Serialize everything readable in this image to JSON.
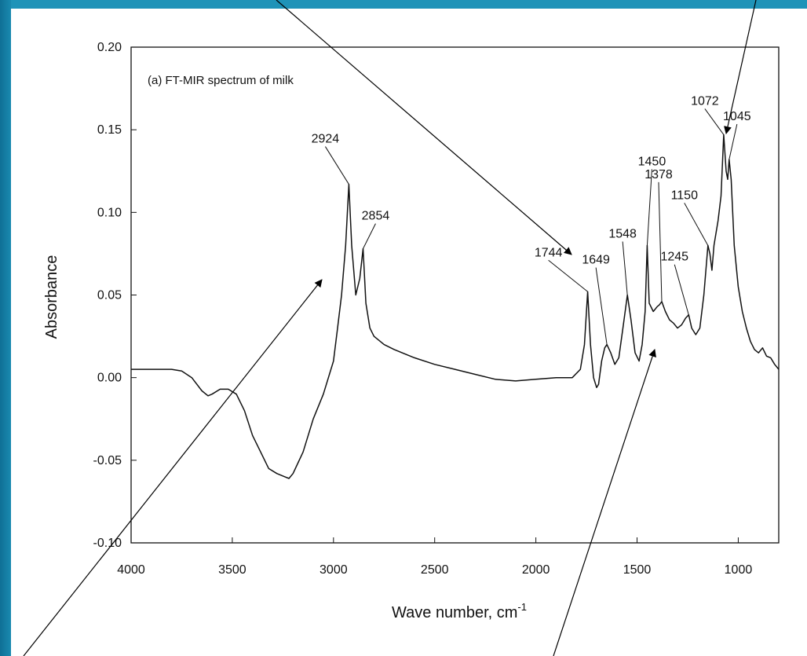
{
  "chart_data": {
    "type": "line",
    "title": "(a) FT-MIR spectrum of milk",
    "xlabel": "Wave number, cm",
    "xlabel_sup": "-1",
    "ylabel": "Absorbance",
    "xlim": [
      4000,
      800
    ],
    "ylim": [
      -0.1,
      0.2
    ],
    "x_reversed": true,
    "x_ticks": [
      4000,
      3500,
      3000,
      2500,
      2000,
      1500,
      1000
    ],
    "x_tick_labels": [
      "4000",
      "3500",
      "3000",
      "2500",
      "2000",
      "1500",
      "1000"
    ],
    "y_ticks": [
      0.2,
      0.15,
      0.1,
      0.05,
      0.0,
      -0.05,
      -0.1
    ],
    "y_tick_labels": [
      "0.20",
      "0.15",
      "0.10",
      "0.05",
      "0.00",
      "-0.05",
      "-0.10"
    ],
    "grid": false,
    "series": [
      {
        "x": [
          4000,
          3900,
          3800,
          3750,
          3700,
          3650,
          3620,
          3600,
          3560,
          3520,
          3480,
          3440,
          3400,
          3360,
          3320,
          3280,
          3240,
          3220,
          3200,
          3150,
          3100,
          3050,
          3000,
          2980,
          2960,
          2940,
          2924,
          2910,
          2890,
          2870,
          2854,
          2840,
          2820,
          2800,
          2750,
          2700,
          2600,
          2500,
          2400,
          2300,
          2200,
          2100,
          2000,
          1900,
          1820,
          1780,
          1760,
          1744,
          1730,
          1715,
          1700,
          1690,
          1675,
          1660,
          1649,
          1630,
          1610,
          1590,
          1570,
          1548,
          1530,
          1510,
          1490,
          1475,
          1460,
          1450,
          1440,
          1420,
          1400,
          1390,
          1378,
          1360,
          1340,
          1320,
          1300,
          1280,
          1260,
          1245,
          1230,
          1210,
          1190,
          1170,
          1160,
          1150,
          1140,
          1130,
          1120,
          1100,
          1085,
          1072,
          1060,
          1052,
          1045,
          1035,
          1020,
          1000,
          980,
          960,
          940,
          920,
          900,
          880,
          860,
          840,
          820,
          800
        ],
        "y": [
          0.005,
          0.005,
          0.005,
          0.004,
          0.0,
          -0.008,
          -0.011,
          -0.01,
          -0.007,
          -0.007,
          -0.01,
          -0.02,
          -0.035,
          -0.045,
          -0.055,
          -0.058,
          -0.06,
          -0.061,
          -0.058,
          -0.045,
          -0.025,
          -0.01,
          0.01,
          0.03,
          0.05,
          0.08,
          0.117,
          0.08,
          0.05,
          0.06,
          0.078,
          0.045,
          0.03,
          0.025,
          0.02,
          0.017,
          0.012,
          0.008,
          0.005,
          0.002,
          -0.001,
          -0.002,
          -0.001,
          0.0,
          0.0,
          0.005,
          0.02,
          0.052,
          0.02,
          0.0,
          -0.006,
          -0.004,
          0.01,
          0.018,
          0.02,
          0.015,
          0.008,
          0.012,
          0.03,
          0.05,
          0.035,
          0.015,
          0.01,
          0.02,
          0.04,
          0.08,
          0.045,
          0.04,
          0.043,
          0.044,
          0.046,
          0.04,
          0.035,
          0.033,
          0.03,
          0.032,
          0.036,
          0.038,
          0.03,
          0.026,
          0.03,
          0.05,
          0.065,
          0.08,
          0.075,
          0.065,
          0.08,
          0.095,
          0.11,
          0.147,
          0.125,
          0.12,
          0.132,
          0.12,
          0.08,
          0.055,
          0.04,
          0.03,
          0.022,
          0.017,
          0.015,
          0.018,
          0.013,
          0.012,
          0.008,
          0.005
        ]
      }
    ],
    "peak_labels": [
      {
        "text": "2924",
        "x": 2924,
        "y": 0.117
      },
      {
        "text": "2854",
        "x": 2854,
        "y": 0.078
      },
      {
        "text": "1744",
        "x": 1744,
        "y": 0.052
      },
      {
        "text": "1649",
        "x": 1649,
        "y": 0.02
      },
      {
        "text": "1548",
        "x": 1548,
        "y": 0.05
      },
      {
        "text": "1450",
        "x": 1450,
        "y": 0.08
      },
      {
        "text": "1378",
        "x": 1378,
        "y": 0.046
      },
      {
        "text": "1245",
        "x": 1245,
        "y": 0.038
      },
      {
        "text": "1150",
        "x": 1150,
        "y": 0.08
      },
      {
        "text": "1072",
        "x": 1072,
        "y": 0.147
      },
      {
        "text": "1045",
        "x": 1045,
        "y": 0.132
      }
    ],
    "line_color": "#111111",
    "background_color": "#1a86aa"
  }
}
